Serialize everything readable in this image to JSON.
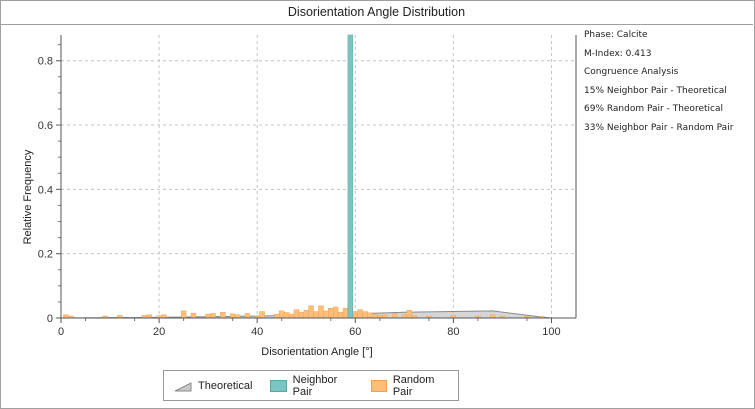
{
  "title": "Disorientation Angle Distribution",
  "info": {
    "phase": "Phase: Calcite",
    "m_index": "M-Index: 0.413",
    "congruence": "Congruence Analysis",
    "line1": "15% Neighbor Pair - Theoretical",
    "line2": "69% Random Pair - Theoretical",
    "line3": "33% Neighbor Pair  - Random Pair"
  },
  "legend": {
    "theoretical": "Theoretical",
    "neighbor": "Neighbor Pair",
    "random": "Random Pair"
  },
  "colors": {
    "neighbor_fill": "#7cc5c2",
    "neighbor_edge": "#5aa6a3",
    "random_fill": "#ffbe7a",
    "random_edge": "#f2a24f",
    "theoretical_fill": "#c8c8c8",
    "theoretical_edge": "#8a8a8a"
  },
  "chart_data": {
    "type": "bar",
    "title": "Disorientation Angle Distribution",
    "xlabel": "Disorientation Angle [°]",
    "ylabel": "Relative Frequency",
    "xlim": [
      0,
      105
    ],
    "ylim": [
      0,
      0.88
    ],
    "xticks": [
      0,
      20,
      40,
      60,
      80,
      100
    ],
    "yticks": [
      0,
      0.2,
      0.4,
      0.6,
      0.8
    ],
    "ytick_labels": [
      "0",
      "0.2",
      "0.4",
      "0.6",
      "0.8"
    ],
    "grid": true,
    "legend_position": "bottom",
    "bin_width": 1,
    "series": [
      {
        "name": "Theoretical",
        "type": "area",
        "x": [
          0,
          20,
          40,
          60,
          70,
          88,
          98,
          100
        ],
        "y": [
          0,
          0.002,
          0.006,
          0.013,
          0.018,
          0.022,
          0.003,
          0
        ]
      },
      {
        "name": "Neighbor Pair",
        "type": "bar",
        "x": [
          59
        ],
        "y": [
          0.88
        ]
      },
      {
        "name": "Random Pair",
        "type": "bar",
        "x": [
          1,
          2,
          9,
          12,
          17,
          18,
          20,
          21,
          25,
          27,
          30,
          31,
          33,
          35,
          36,
          38,
          40,
          41,
          44,
          45,
          46,
          47,
          48,
          49,
          50,
          51,
          52,
          53,
          54,
          55,
          56,
          57,
          58,
          59,
          60,
          61,
          62,
          63,
          64,
          65,
          66,
          68,
          70,
          71,
          72,
          75,
          80,
          85,
          88,
          90,
          95,
          98
        ],
        "y": [
          0.01,
          0.006,
          0.006,
          0.008,
          0.008,
          0.01,
          0.007,
          0.01,
          0.022,
          0.015,
          0.012,
          0.014,
          0.018,
          0.013,
          0.01,
          0.014,
          0.006,
          0.02,
          0.012,
          0.022,
          0.017,
          0.012,
          0.026,
          0.018,
          0.024,
          0.038,
          0.02,
          0.038,
          0.022,
          0.03,
          0.034,
          0.018,
          0.03,
          0.043,
          0.02,
          0.026,
          0.02,
          0.016,
          0.01,
          0.008,
          0.01,
          0.014,
          0.01,
          0.024,
          0.008,
          0.006,
          0.008,
          0.006,
          0.01,
          0.006,
          0.005,
          0.005
        ]
      }
    ]
  }
}
